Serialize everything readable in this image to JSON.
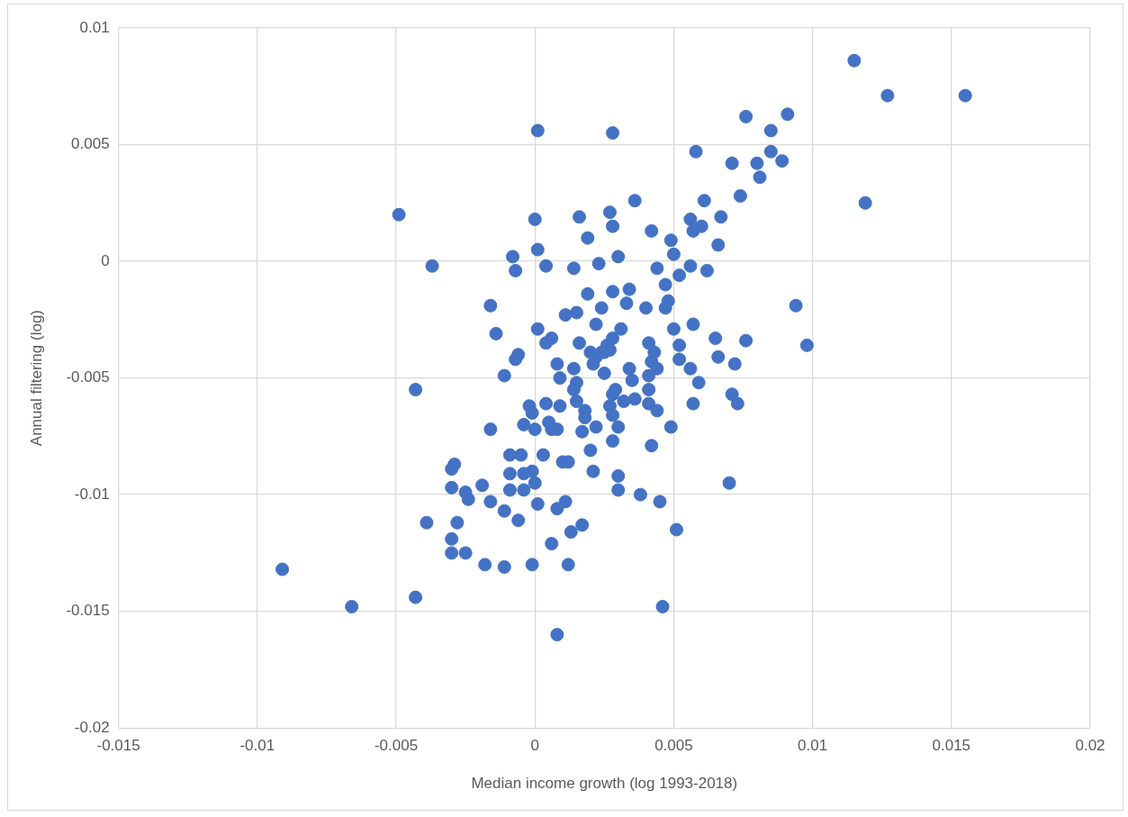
{
  "chart_data": {
    "type": "scatter",
    "xlabel": "Median income growth (log 1993-2018)",
    "ylabel": "Annual filtering (log)",
    "x": [
      0.0115,
      0.0155,
      0.0127,
      0.0091,
      0.0076,
      0.0085,
      0.0001,
      0.0028,
      0.0058,
      0.0085,
      0.0089,
      0.0071,
      0.008,
      0.0081,
      0.0119,
      0.0074,
      0.0036,
      -0.0049,
      0.0061,
      0.0027,
      0.0,
      0.0016,
      0.0056,
      0.006,
      0.0067,
      0.0028,
      0.0042,
      0.0057,
      0.0019,
      0.0049,
      0.0066,
      0.0001,
      0.003,
      -0.0008,
      0.005,
      -0.0037,
      -0.0007,
      0.0004,
      0.0014,
      0.0023,
      0.0044,
      0.0056,
      0.0052,
      0.0062,
      0.0047,
      0.0019,
      0.0028,
      0.0034,
      -0.0016,
      0.0011,
      0.0015,
      0.0024,
      0.0033,
      0.004,
      0.0047,
      0.0048,
      0.0094,
      0.0001,
      -0.0014,
      0.0022,
      0.0031,
      0.005,
      0.0057,
      0.0006,
      0.0004,
      0.0016,
      0.0028,
      0.0026,
      0.0025,
      0.0027,
      0.0041,
      0.0052,
      0.0065,
      0.0076,
      0.0098,
      -0.0007,
      -0.0006,
      0.002,
      0.0024,
      0.0021,
      0.0022,
      0.0043,
      0.0042,
      0.0052,
      0.0066,
      0.0008,
      0.0014,
      0.0034,
      0.0025,
      0.0044,
      0.0041,
      0.0056,
      0.0072,
      -0.0011,
      0.0035,
      0.0009,
      0.0015,
      0.0014,
      -0.0043,
      0.0015,
      -0.0002,
      0.0004,
      0.0009,
      0.0041,
      0.0041,
      0.0057,
      0.0059,
      0.0071,
      0.0073,
      0.0028,
      0.0027,
      0.0029,
      0.0032,
      0.0036,
      -0.0001,
      0.0028,
      0.0018,
      0.0018,
      0.0005,
      0.0006,
      -0.0004,
      0.0,
      0.0008,
      0.0017,
      0.0022,
      0.003,
      0.0044,
      0.0049,
      -0.0016,
      0.0028,
      0.0042,
      -0.0009,
      -0.0005,
      0.0003,
      0.001,
      0.002,
      0.0012,
      -0.003,
      -0.0029,
      -0.0009,
      -0.0004,
      -0.0001,
      0.0,
      0.0021,
      0.003,
      -0.003,
      -0.0025,
      -0.0009,
      -0.0004,
      0.0001,
      0.003,
      0.007,
      -0.0019,
      -0.0024,
      -0.0016,
      -0.0011,
      -0.0006,
      0.0008,
      0.0011,
      0.0017,
      0.0038,
      0.0045,
      -0.0039,
      -0.0028,
      -0.003,
      -0.003,
      -0.0025,
      0.0006,
      0.0013,
      0.0051,
      -0.0018,
      -0.0011,
      -0.0001,
      0.0012,
      -0.0091,
      -0.0066,
      -0.0043,
      0.0046,
      0.0008
    ],
    "values": [
      0.0086,
      0.0071,
      0.0071,
      0.0063,
      0.0062,
      0.0056,
      0.0056,
      0.0055,
      0.0047,
      0.0047,
      0.0043,
      0.0042,
      0.0042,
      0.0036,
      0.0025,
      0.0028,
      0.0026,
      0.002,
      0.0026,
      0.0021,
      0.0018,
      0.0019,
      0.0018,
      0.0015,
      0.0019,
      0.0015,
      0.0013,
      0.0013,
      0.001,
      0.0009,
      0.0007,
      0.0005,
      0.0002,
      0.0002,
      0.0003,
      -0.0002,
      -0.0004,
      -0.0002,
      -0.0003,
      -0.0001,
      -0.0003,
      -0.0002,
      -0.0006,
      -0.0004,
      -0.001,
      -0.0014,
      -0.0013,
      -0.0012,
      -0.0019,
      -0.0023,
      -0.0022,
      -0.002,
      -0.0018,
      -0.002,
      -0.002,
      -0.0017,
      -0.0019,
      -0.0029,
      -0.0031,
      -0.0027,
      -0.0029,
      -0.0029,
      -0.0027,
      -0.0033,
      -0.0035,
      -0.0035,
      -0.0033,
      -0.0036,
      -0.0039,
      -0.0038,
      -0.0035,
      -0.0036,
      -0.0033,
      -0.0034,
      -0.0036,
      -0.0042,
      -0.004,
      -0.0039,
      -0.0039,
      -0.0044,
      -0.0041,
      -0.0039,
      -0.0043,
      -0.0042,
      -0.0041,
      -0.0044,
      -0.0046,
      -0.0046,
      -0.0048,
      -0.0046,
      -0.0049,
      -0.0046,
      -0.0044,
      -0.0049,
      -0.0051,
      -0.005,
      -0.0052,
      -0.0055,
      -0.0055,
      -0.006,
      -0.0062,
      -0.0061,
      -0.0062,
      -0.0055,
      -0.0061,
      -0.0061,
      -0.0052,
      -0.0057,
      -0.0061,
      -0.0057,
      -0.0062,
      -0.0055,
      -0.006,
      -0.0059,
      -0.0065,
      -0.0066,
      -0.0064,
      -0.0067,
      -0.0069,
      -0.0072,
      -0.007,
      -0.0072,
      -0.0072,
      -0.0073,
      -0.0071,
      -0.0071,
      -0.0064,
      -0.0071,
      -0.0072,
      -0.0077,
      -0.0079,
      -0.0083,
      -0.0083,
      -0.0083,
      -0.0086,
      -0.0081,
      -0.0086,
      -0.0089,
      -0.0087,
      -0.0091,
      -0.0091,
      -0.009,
      -0.0095,
      -0.009,
      -0.0092,
      -0.0097,
      -0.0099,
      -0.0098,
      -0.0098,
      -0.0104,
      -0.0098,
      -0.0095,
      -0.0096,
      -0.0102,
      -0.0103,
      -0.0107,
      -0.0111,
      -0.0106,
      -0.0103,
      -0.0113,
      -0.01,
      -0.0103,
      -0.0112,
      -0.0112,
      -0.0119,
      -0.0125,
      -0.0125,
      -0.0121,
      -0.0116,
      -0.0115,
      -0.013,
      -0.0131,
      -0.013,
      -0.013,
      -0.0132,
      -0.0148,
      -0.0144,
      -0.0148,
      -0.016
    ],
    "color": "#4472c4",
    "marker": "circle",
    "xlim": [
      -0.015,
      0.02
    ],
    "xticks": [
      -0.015,
      -0.01,
      -0.005,
      0,
      0.005,
      0.01,
      0.015,
      0.02
    ],
    "ylim": [
      -0.02,
      0.01
    ],
    "yticks": [
      -0.02,
      -0.015,
      -0.01,
      -0.005,
      0,
      0.005,
      0.01
    ],
    "grid": true
  }
}
